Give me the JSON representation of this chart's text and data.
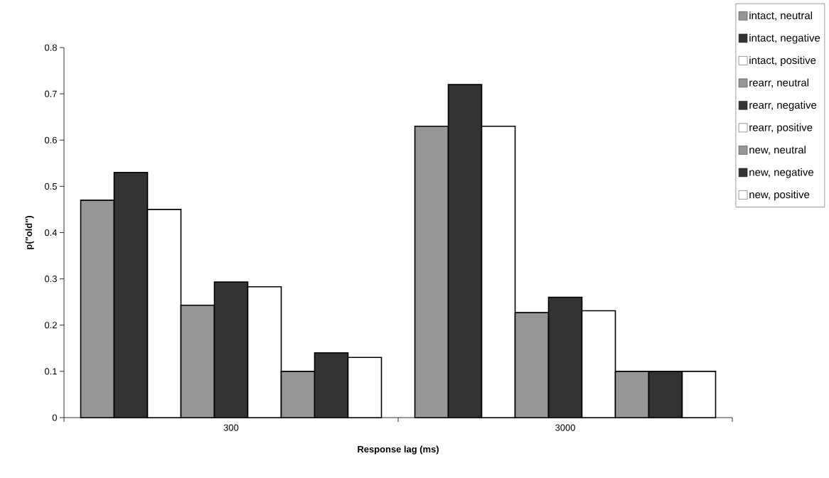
{
  "chart_data": {
    "type": "bar",
    "xlabel": "Response lag (ms)",
    "ylabel": "p(\"old\")",
    "categories": [
      "300",
      "3000"
    ],
    "series": [
      {
        "name": "intact, neutral",
        "color": "#969696",
        "values": [
          0.47,
          0.63
        ]
      },
      {
        "name": "intact, negative",
        "color": "#333333",
        "values": [
          0.53,
          0.72
        ]
      },
      {
        "name": "intact, positive",
        "color": "#ffffff",
        "values": [
          0.45,
          0.63
        ]
      },
      {
        "name": "rearr, neutral",
        "color": "#969696",
        "values": [
          0.243,
          0.227
        ]
      },
      {
        "name": "rearr, negative",
        "color": "#333333",
        "values": [
          0.293,
          0.26
        ]
      },
      {
        "name": "rearr, positive",
        "color": "#ffffff",
        "values": [
          0.283,
          0.231
        ]
      },
      {
        "name": "new, neutral",
        "color": "#969696",
        "values": [
          0.1,
          0.1
        ]
      },
      {
        "name": "new, negative",
        "color": "#333333",
        "values": [
          0.14,
          0.1
        ]
      },
      {
        "name": "new, positive",
        "color": "#ffffff",
        "values": [
          0.13,
          0.1
        ]
      }
    ],
    "ylim": [
      0,
      0.8
    ],
    "yticks": [
      0,
      0.1,
      0.2,
      0.3,
      0.4,
      0.5,
      0.6,
      0.7,
      0.8
    ],
    "grid": false,
    "legend": "top right"
  }
}
